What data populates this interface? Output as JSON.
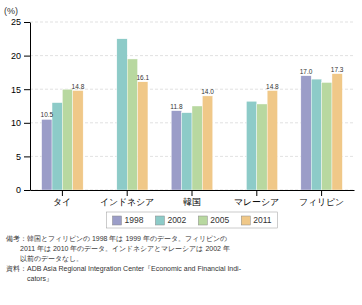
{
  "chart_data": {
    "type": "bar",
    "ylabel": "(%)",
    "categories": [
      "タイ",
      "インドネシア",
      "韓国",
      "マレーシア",
      "フィリピン"
    ],
    "series": [
      {
        "name": "1998",
        "color": "#9b9dc8",
        "values": [
          10.5,
          null,
          11.8,
          null,
          17.0
        ],
        "data_labels": true,
        "value_labels": [
          "10.5",
          null,
          "11.8",
          null,
          "17.0"
        ]
      },
      {
        "name": "2002",
        "color": "#8dcbc8",
        "values": [
          13.0,
          22.5,
          11.5,
          13.2,
          16.5
        ],
        "data_labels": false
      },
      {
        "name": "2005",
        "color": "#b8d8a0",
        "values": [
          15.0,
          19.5,
          12.5,
          12.8,
          16.0
        ],
        "data_labels": false
      },
      {
        "name": "2011",
        "color": "#f0c888",
        "values": [
          14.8,
          16.1,
          14.0,
          14.8,
          17.3
        ],
        "data_labels": true,
        "value_labels": [
          "14.8",
          "16.1",
          "14.0",
          "14.8",
          "17.3"
        ]
      }
    ],
    "ylim": [
      0,
      25
    ],
    "yticks": [
      0,
      5,
      10,
      15,
      20,
      25
    ],
    "grid": true,
    "legend": "bottom",
    "annotations": [
      "備考：韓国とフィリピンの 1998 年は 1999 年のデータ。フィリピンの",
      "　　2011 年は 2010 年のデータ。インドネシアとマレーシアは 2002 年",
      "　　以前のデータなし。",
      "資料：ADB Asia Regional Integration Center『Economic and Financial Indi-",
      "　　　cators』"
    ]
  }
}
